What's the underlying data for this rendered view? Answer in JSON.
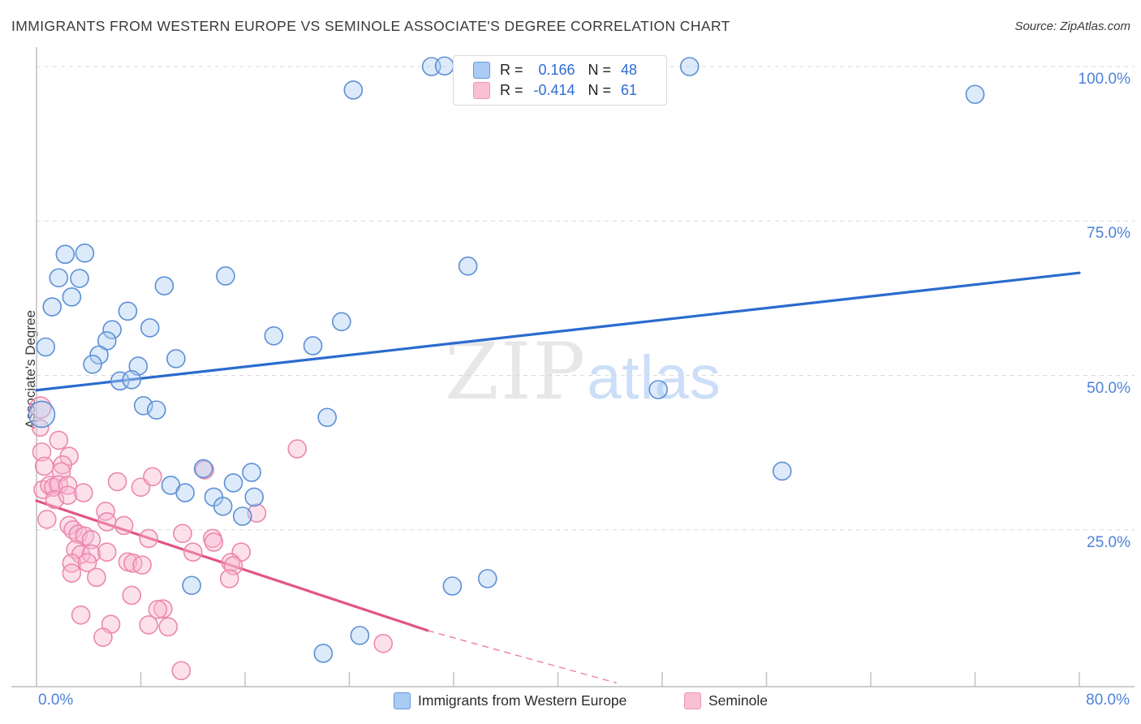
{
  "header": {
    "title": "IMMIGRANTS FROM WESTERN EUROPE VS SEMINOLE ASSOCIATE'S DEGREE CORRELATION CHART",
    "source": "Source: ZipAtlas.com"
  },
  "legend_box": {
    "r_label": "R =",
    "n_label": "N =",
    "rows": [
      {
        "series": "Immigrants from Western Europe",
        "r": "0.166",
        "n": "48"
      },
      {
        "series": "Seminole",
        "r": "-0.414",
        "n": "61"
      }
    ]
  },
  "axes": {
    "y_label": "Associate's Degree",
    "y_tick_labels": [
      "100.0%",
      "75.0%",
      "50.0%",
      "25.0%"
    ],
    "x_min_label": "0.0%",
    "x_max_label": "80.0%"
  },
  "bottom_legend": [
    {
      "label": "Immigrants from Western Europe"
    },
    {
      "label": "Seminole"
    }
  ],
  "watermark": {
    "zip": "ZIP",
    "atlas": "atlas"
  },
  "colors": {
    "blue_fill": "#aecdf0",
    "blue_stroke": "#5b8fd6",
    "pink_fill": "#f7b8cf",
    "pink_stroke": "#ec87ac",
    "trend_blue": "#2a6bce",
    "trend_pink": "#e25581",
    "grid": "#d9d9de",
    "axis": "#bdbdc2",
    "tick_label": "#4e82d8"
  },
  "chart_data": {
    "type": "scatter",
    "xlabel": "Immigrants from Western Europe (%)",
    "ylabel": "Associate's Degree",
    "xlim": [
      0,
      80
    ],
    "ylim": [
      0,
      100
    ],
    "x_tick_step": 8,
    "y_gridlines": [
      100,
      75,
      50,
      25
    ],
    "grid": "dashed-horizontal",
    "legend_position": "top-center and bottom-center",
    "series": [
      {
        "name": "Immigrants from Western Europe",
        "R": 0.166,
        "N": 48,
        "trend_solid": [
          [
            0,
            47.6
          ],
          [
            80,
            66.6
          ]
        ],
        "points": [
          [
            2.2,
            69.6
          ],
          [
            3.7,
            69.8
          ],
          [
            1.7,
            65.8
          ],
          [
            3.3,
            65.7
          ],
          [
            2.7,
            62.7
          ],
          [
            1.2,
            61.1
          ],
          [
            7.0,
            60.4
          ],
          [
            9.8,
            64.5
          ],
          [
            14.5,
            66.1
          ],
          [
            5.8,
            57.4
          ],
          [
            5.4,
            55.6
          ],
          [
            8.7,
            57.7
          ],
          [
            4.8,
            53.3
          ],
          [
            4.3,
            51.8
          ],
          [
            0.7,
            54.6
          ],
          [
            7.8,
            51.5
          ],
          [
            6.4,
            49.1
          ],
          [
            7.3,
            49.3
          ],
          [
            10.7,
            52.7
          ],
          [
            8.2,
            45.1
          ],
          [
            9.2,
            44.4
          ],
          [
            0.4,
            43.7,
            16
          ],
          [
            18.2,
            56.4
          ],
          [
            21.2,
            54.8
          ],
          [
            23.4,
            58.7
          ],
          [
            33.1,
            67.7
          ],
          [
            24.3,
            96.2
          ],
          [
            30.3,
            100.0
          ],
          [
            31.3,
            100.1
          ],
          [
            50.1,
            100.0
          ],
          [
            72.0,
            95.5
          ],
          [
            22.3,
            43.2
          ],
          [
            47.7,
            47.7
          ],
          [
            57.2,
            34.5
          ],
          [
            12.8,
            34.9
          ],
          [
            10.3,
            32.2
          ],
          [
            11.4,
            31.0
          ],
          [
            13.6,
            30.3
          ],
          [
            15.1,
            32.6
          ],
          [
            16.5,
            34.3
          ],
          [
            14.3,
            28.8
          ],
          [
            16.7,
            30.3
          ],
          [
            15.8,
            27.2
          ],
          [
            11.9,
            16.0
          ],
          [
            31.9,
            15.9
          ],
          [
            34.6,
            17.1
          ],
          [
            24.8,
            7.9
          ],
          [
            22.0,
            5.0
          ]
        ]
      },
      {
        "name": "Seminole",
        "R": -0.414,
        "N": 61,
        "trend_solid": [
          [
            0,
            29.7
          ],
          [
            30.0,
            8.7
          ]
        ],
        "trend_dashed": [
          [
            30.0,
            8.7
          ],
          [
            44.5,
            0.2
          ]
        ],
        "points": [
          [
            0.3,
            44.8,
            13
          ],
          [
            0.3,
            41.5,
            10
          ],
          [
            1.7,
            39.5
          ],
          [
            0.4,
            37.6
          ],
          [
            2.5,
            36.9
          ],
          [
            0.6,
            35.3
          ],
          [
            2.0,
            35.5
          ],
          [
            1.9,
            34.4
          ],
          [
            0.5,
            31.5
          ],
          [
            1.0,
            32.2
          ],
          [
            1.3,
            31.9
          ],
          [
            1.7,
            32.3
          ],
          [
            2.4,
            32.2
          ],
          [
            1.4,
            29.9
          ],
          [
            2.4,
            30.6
          ],
          [
            3.6,
            31.0
          ],
          [
            6.2,
            32.8
          ],
          [
            8.0,
            31.9
          ],
          [
            8.9,
            33.6
          ],
          [
            0.8,
            26.7
          ],
          [
            2.5,
            25.7
          ],
          [
            2.8,
            25.0
          ],
          [
            3.2,
            24.3
          ],
          [
            3.7,
            24.0
          ],
          [
            5.3,
            28.0
          ],
          [
            5.4,
            26.3
          ],
          [
            4.2,
            23.4
          ],
          [
            3.0,
            21.8
          ],
          [
            3.4,
            21.0
          ],
          [
            4.2,
            21.1
          ],
          [
            6.7,
            25.7
          ],
          [
            8.6,
            23.6
          ],
          [
            11.2,
            24.4
          ],
          [
            5.4,
            21.4
          ],
          [
            7.0,
            19.8
          ],
          [
            7.4,
            19.6
          ],
          [
            8.1,
            19.3
          ],
          [
            20.0,
            38.1
          ],
          [
            12.9,
            34.7
          ],
          [
            16.9,
            27.7
          ],
          [
            13.5,
            23.6
          ],
          [
            13.6,
            23.0
          ],
          [
            12.0,
            21.4
          ],
          [
            15.7,
            21.4
          ],
          [
            14.9,
            19.7
          ],
          [
            15.1,
            19.2
          ],
          [
            14.8,
            17.1
          ],
          [
            9.7,
            12.2
          ],
          [
            10.1,
            9.3
          ],
          [
            26.6,
            6.6
          ],
          [
            11.1,
            2.2
          ],
          [
            2.7,
            19.6
          ],
          [
            2.7,
            18.0
          ],
          [
            3.9,
            19.7
          ],
          [
            4.6,
            17.3
          ],
          [
            7.3,
            14.4
          ],
          [
            3.4,
            11.2
          ],
          [
            5.7,
            9.7
          ],
          [
            5.1,
            7.6
          ],
          [
            8.6,
            9.6
          ],
          [
            9.3,
            12.1
          ]
        ]
      }
    ]
  }
}
